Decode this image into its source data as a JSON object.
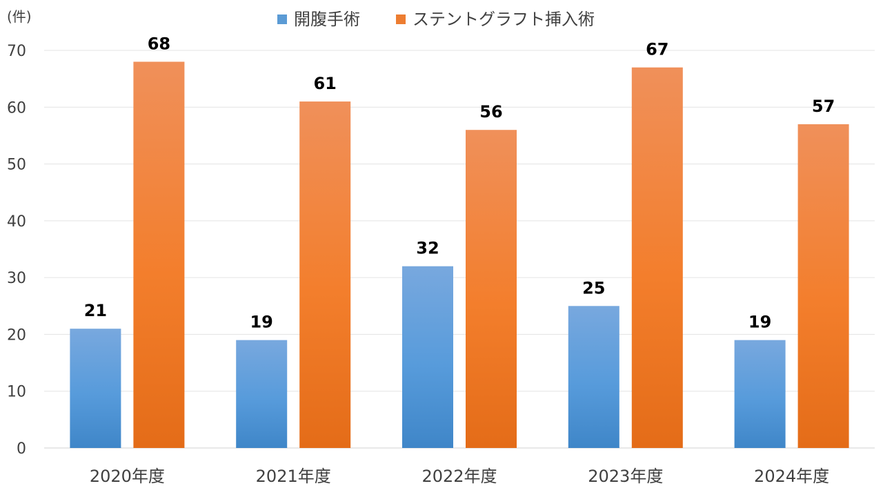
{
  "chart_data": {
    "type": "bar",
    "title": "",
    "xlabel": "",
    "ylabel": "(件)",
    "ylim": [
      0,
      70
    ],
    "yticks": [
      0,
      10,
      20,
      30,
      40,
      50,
      60,
      70
    ],
    "grid": true,
    "legend": "top-center",
    "categories": [
      "2020年度",
      "2021年度",
      "2022年度",
      "2023年度",
      "2024年度"
    ],
    "series": [
      {
        "name": "開腹手術",
        "values": [
          21,
          19,
          32,
          25,
          19
        ],
        "color": "#5B9BD5"
      },
      {
        "name": "ステントグラフト挿入術",
        "values": [
          68,
          61,
          56,
          67,
          57
        ],
        "color": "#ED7D31"
      }
    ]
  }
}
